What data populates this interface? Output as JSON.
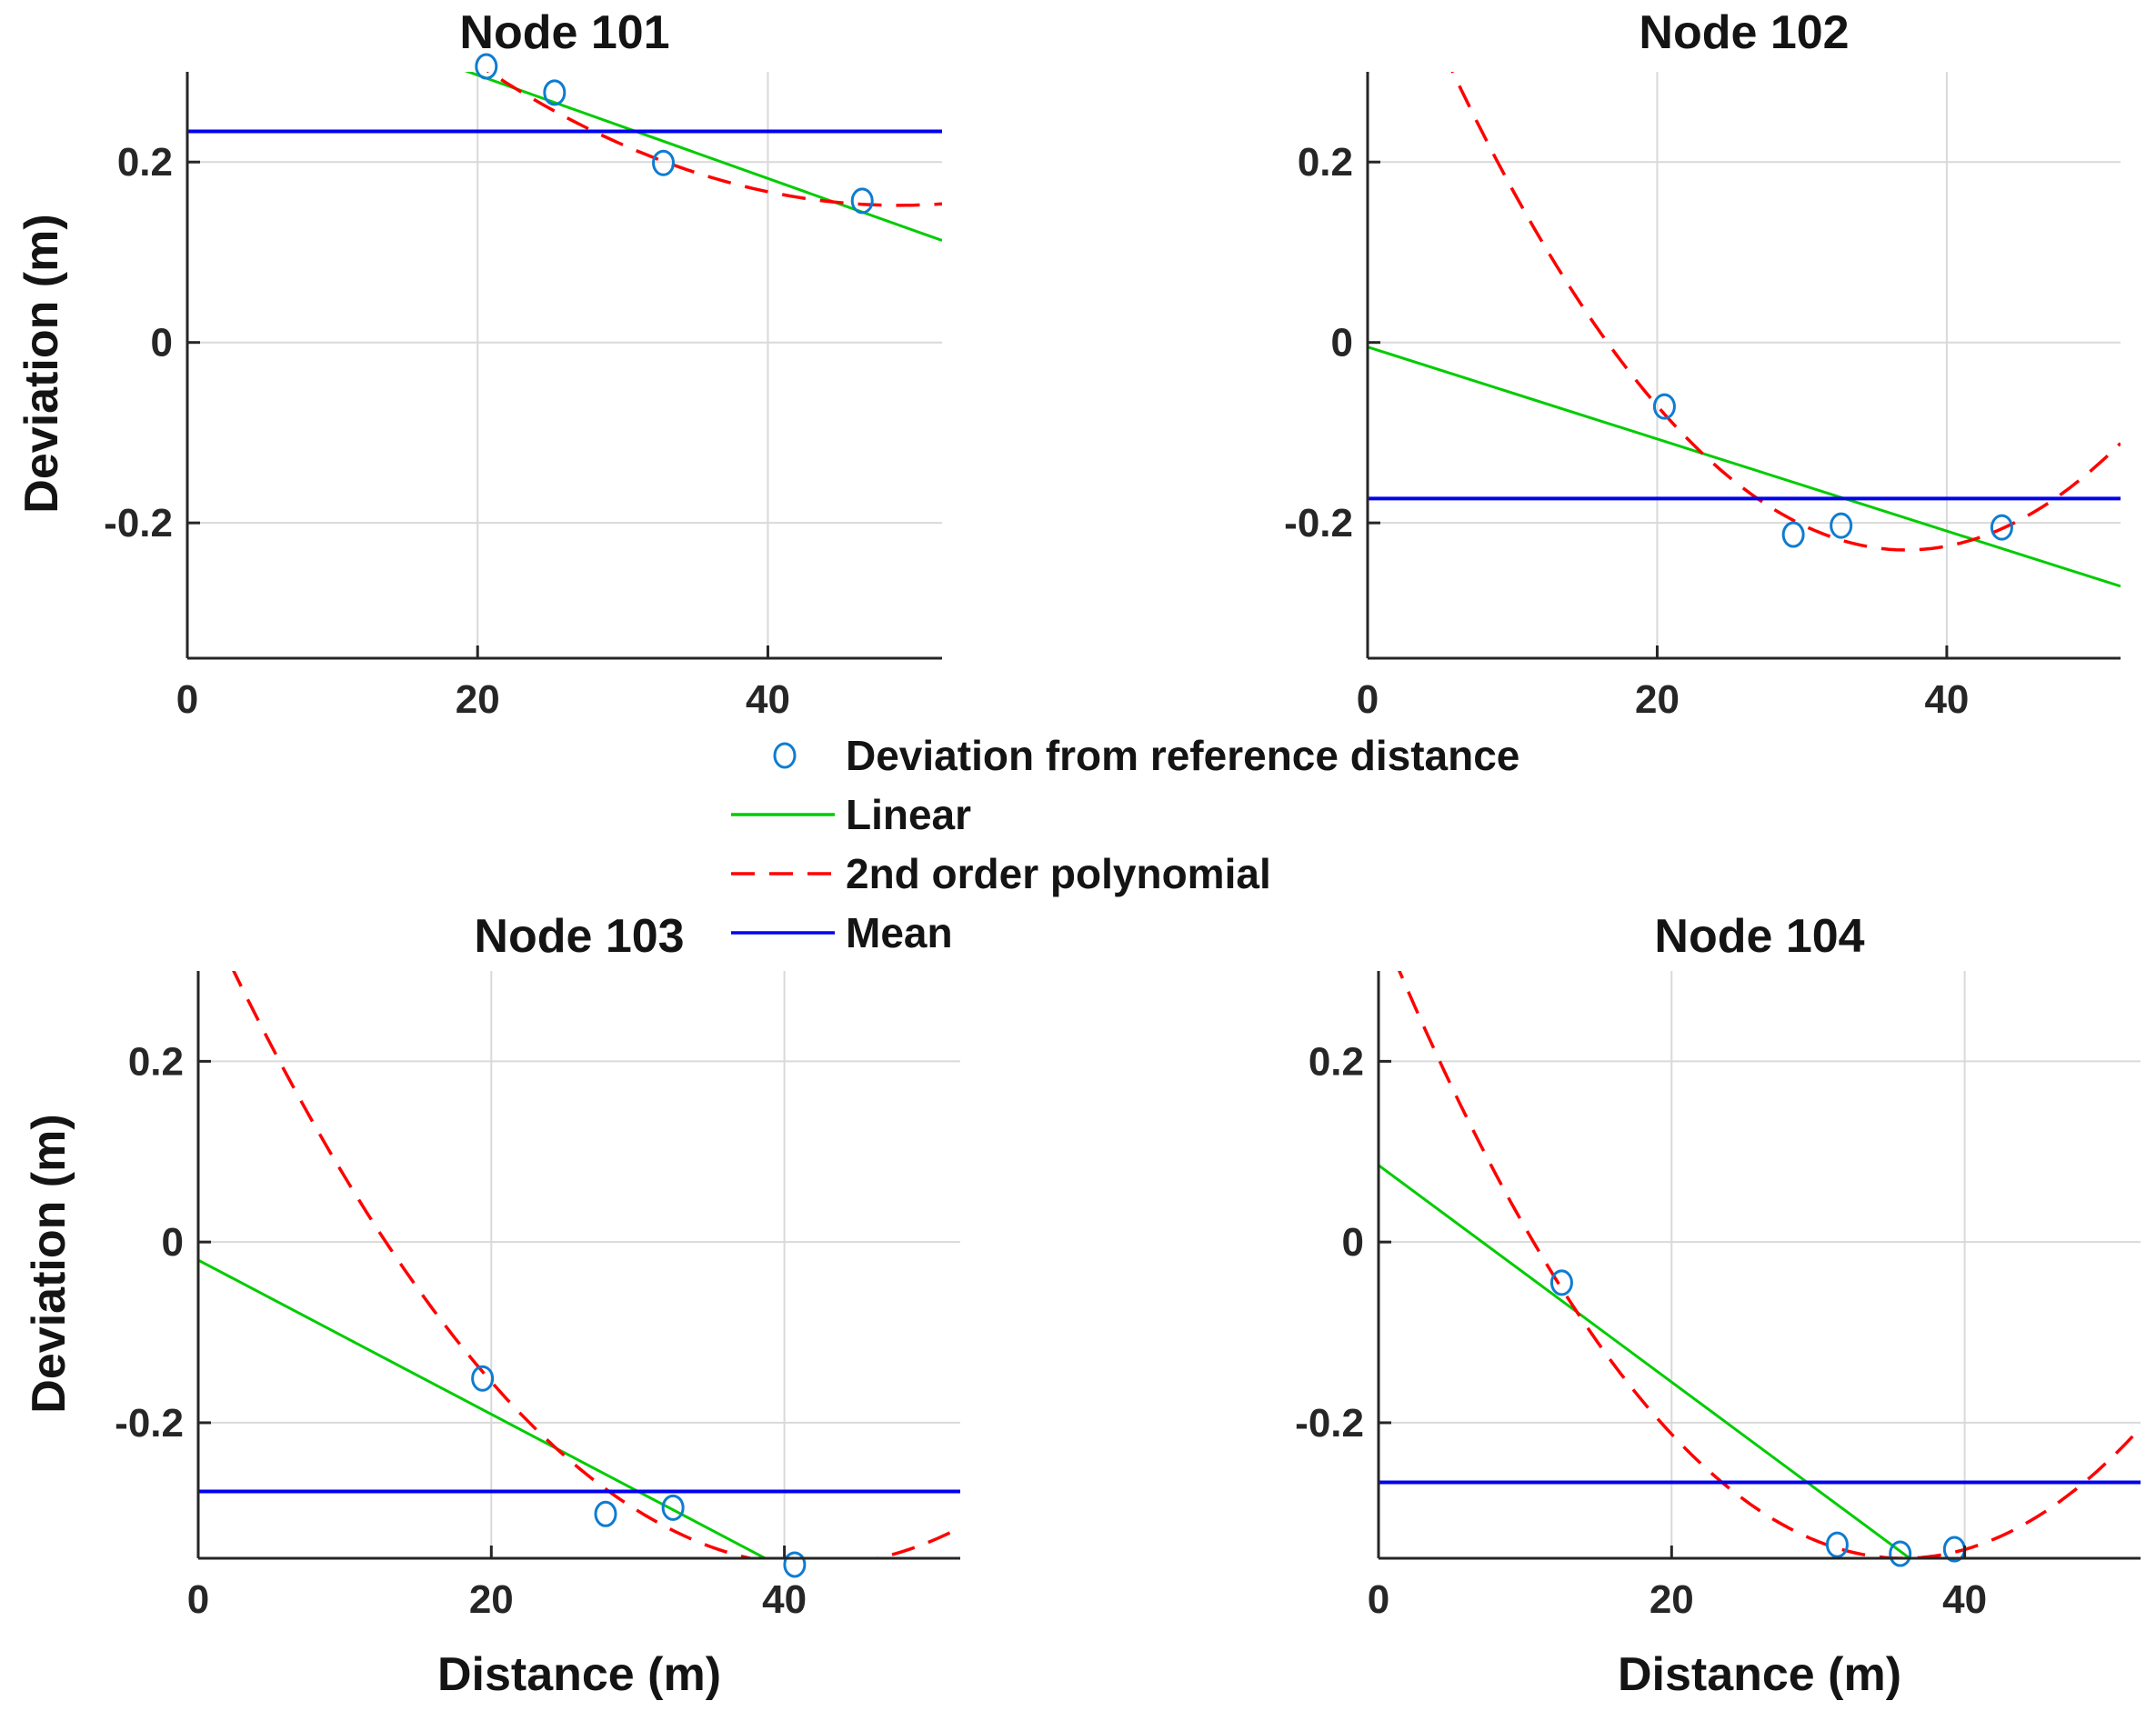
{
  "figure": {
    "background": "#ffffff"
  },
  "colors": {
    "scatter": "#0e7cd1",
    "linear": "#00cc00",
    "poly": "#ff0000",
    "mean": "#0000ee",
    "grid": "#d9d9d9",
    "axis": "#262626",
    "text": "#141414"
  },
  "legend": {
    "items": [
      {
        "label": "Deviation from reference distance",
        "type": "marker",
        "color_key": "scatter"
      },
      {
        "label": "Linear",
        "type": "line",
        "color_key": "linear"
      },
      {
        "label": "2nd order polynomial",
        "type": "dashed-line",
        "color_key": "poly"
      },
      {
        "label": "Mean",
        "type": "line",
        "color_key": "mean"
      }
    ]
  },
  "chart_data": [
    {
      "type": "scatter",
      "title": "Node 101",
      "xlabel": "",
      "ylabel": "Deviation (m)",
      "xlim": [
        0,
        52
      ],
      "ylim": [
        -0.35,
        0.3
      ],
      "xticks": [
        0,
        20,
        40
      ],
      "yticks": [
        0.2,
        0,
        -0.2
      ],
      "grid": true,
      "points": [
        [
          20.6,
          0.306
        ],
        [
          25.3,
          0.277
        ],
        [
          32.8,
          0.199
        ],
        [
          46.5,
          0.157
        ]
      ],
      "mean": 0.234,
      "linear": {
        "intercept": 0.411,
        "slope": -0.00573
      },
      "poly": {
        "a": 0.000186,
        "h": 49.0,
        "k": 0.152
      }
    },
    {
      "type": "scatter",
      "title": "Node 102",
      "xlabel": "",
      "ylabel": "",
      "xlim": [
        0,
        52
      ],
      "ylim": [
        -0.35,
        0.3
      ],
      "xticks": [
        0,
        20,
        40
      ],
      "yticks": [
        0.2,
        0,
        -0.2
      ],
      "grid": true,
      "points": [
        [
          20.5,
          -0.071
        ],
        [
          29.4,
          -0.213
        ],
        [
          32.7,
          -0.203
        ],
        [
          43.8,
          -0.205
        ]
      ],
      "mean": -0.173,
      "linear": {
        "intercept": -0.005,
        "slope": -0.0051
      },
      "poly": {
        "a": 0.00054,
        "h": 37.2,
        "k": -0.23
      }
    },
    {
      "type": "scatter",
      "title": "Node 103",
      "xlabel": "Distance (m)",
      "ylabel": "Deviation (m)",
      "xlim": [
        0,
        52
      ],
      "ylim": [
        -0.35,
        0.3
      ],
      "xticks": [
        0,
        20,
        40
      ],
      "yticks": [
        0.2,
        0,
        -0.2
      ],
      "grid": true,
      "points": [
        [
          19.4,
          -0.151
        ],
        [
          27.8,
          -0.301
        ],
        [
          32.4,
          -0.294
        ],
        [
          40.7,
          -0.357
        ]
      ],
      "mean": -0.276,
      "linear": {
        "intercept": -0.02,
        "slope": -0.00853
      },
      "poly": {
        "a": 0.00042,
        "h": 42.0,
        "k": -0.358
      }
    },
    {
      "type": "scatter",
      "title": "Node 104",
      "xlabel": "Distance (m)",
      "ylabel": "",
      "xlim": [
        0,
        52
      ],
      "ylim": [
        -0.35,
        0.3
      ],
      "xticks": [
        0,
        20,
        40
      ],
      "yticks": [
        0.2,
        0,
        -0.2
      ],
      "grid": true,
      "points": [
        [
          12.5,
          -0.045
        ],
        [
          31.3,
          -0.335
        ],
        [
          35.6,
          -0.345
        ],
        [
          39.3,
          -0.34
        ]
      ],
      "mean": -0.266,
      "linear": {
        "intercept": 0.085,
        "slope": -0.012
      },
      "poly": {
        "a": 0.00055,
        "h": 35.8,
        "k": -0.35
      }
    }
  ]
}
